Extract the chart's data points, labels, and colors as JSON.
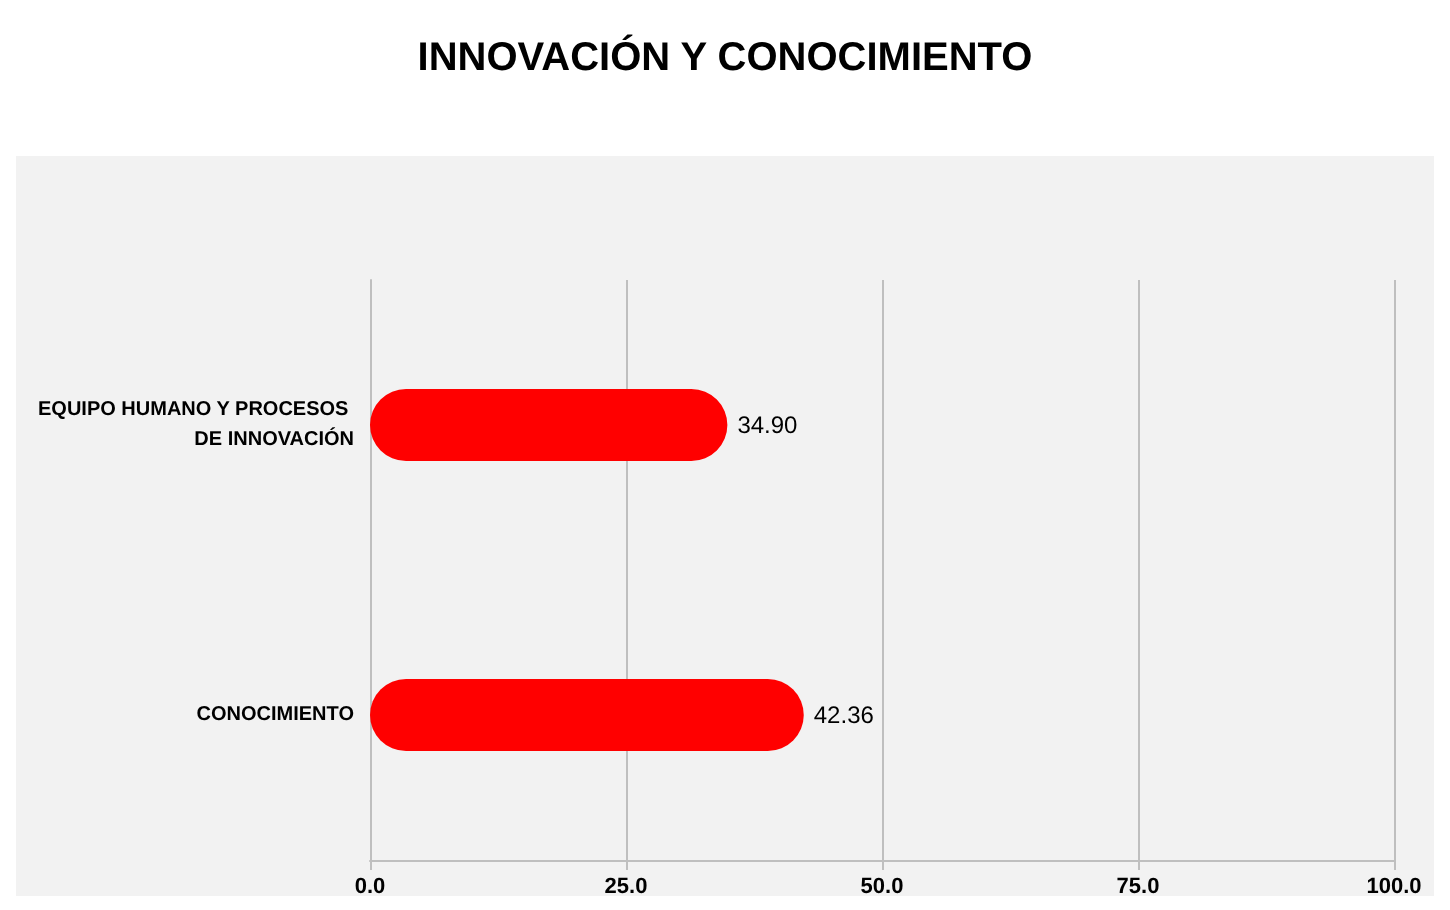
{
  "chart_data": {
    "type": "bar",
    "orientation": "horizontal",
    "title": "INNOVACIÓN Y CONOCIMIENTO",
    "categories": [
      "EQUIPO HUMANO Y PROCESOS DE INNOVACIÓN",
      "CONOCIMIENTO"
    ],
    "values": [
      34.9,
      42.36
    ],
    "value_labels": [
      "34.90",
      "42.36"
    ],
    "color": "#ff0000",
    "xlim": [
      0,
      100
    ],
    "xticks": [
      {
        "value": 0,
        "label": "0.0"
      },
      {
        "value": 25,
        "label": "25.0"
      },
      {
        "value": 50,
        "label": "50.0"
      },
      {
        "value": 75,
        "label": "75.0"
      },
      {
        "value": 100,
        "label": "100.0"
      }
    ],
    "grid": "x"
  }
}
